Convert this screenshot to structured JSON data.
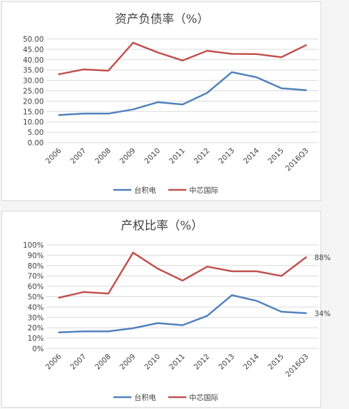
{
  "chart_data": [
    {
      "type": "line",
      "title": "资产负债率（%）",
      "categories": [
        "2006",
        "2007",
        "2008",
        "2009",
        "2010",
        "2011",
        "2012",
        "2013",
        "2014",
        "2015",
        "2016Q3"
      ],
      "series": [
        {
          "name": "台积电",
          "color": "#4f81bd",
          "values": [
            13.3,
            14.0,
            14.0,
            16.0,
            19.5,
            18.4,
            24.0,
            34.0,
            31.5,
            26.2,
            25.3
          ]
        },
        {
          "name": "中芯国际",
          "color": "#c0504d",
          "values": [
            33.0,
            35.3,
            34.7,
            48.2,
            43.5,
            39.6,
            44.3,
            42.8,
            42.7,
            41.2,
            47.0
          ]
        }
      ],
      "ylim": [
        0,
        50
      ],
      "yticks": [
        0,
        5,
        10,
        15,
        20,
        25,
        30,
        35,
        40,
        45,
        50
      ],
      "ytick_labels": [
        "0.00",
        "5.00",
        "10.00",
        "15.00",
        "20.00",
        "25.00",
        "30.00",
        "35.00",
        "40.00",
        "45.00",
        "50.00"
      ],
      "grid": true,
      "legend": "bottom"
    },
    {
      "type": "line",
      "title": "产权比率（%）",
      "categories": [
        "2006",
        "2007",
        "2008",
        "2009",
        "2010",
        "2011",
        "2012",
        "2013",
        "2014",
        "2015",
        "2016Q3"
      ],
      "series": [
        {
          "name": "台积电",
          "color": "#4f81bd",
          "values": [
            15.5,
            16.5,
            16.5,
            19.5,
            24.5,
            22.5,
            31.5,
            51.5,
            46.0,
            35.5,
            34.0
          ],
          "end_label": "34%"
        },
        {
          "name": "中芯国际",
          "color": "#c0504d",
          "values": [
            49.0,
            54.5,
            53.0,
            92.5,
            77.0,
            65.5,
            79.0,
            74.5,
            74.5,
            70.0,
            88.0
          ],
          "end_label": "88%"
        }
      ],
      "ylim": [
        0,
        100
      ],
      "yticks": [
        0,
        10,
        20,
        30,
        40,
        50,
        60,
        70,
        80,
        90,
        100
      ],
      "ytick_labels": [
        "0%",
        "10%",
        "20%",
        "30%",
        "40%",
        "50%",
        "60%",
        "70%",
        "80%",
        "90%",
        "100%"
      ],
      "grid": true,
      "legend": "bottom"
    }
  ]
}
